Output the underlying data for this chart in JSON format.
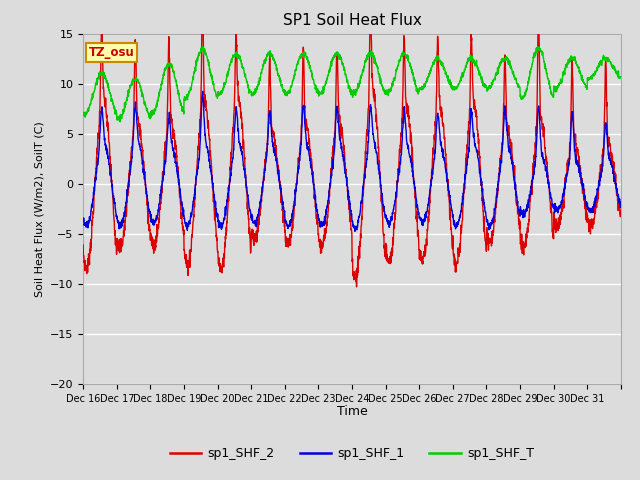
{
  "title": "SP1 Soil Heat Flux",
  "ylabel": "Soil Heat Flux (W/m2), SoilT (C)",
  "xlabel": "Time",
  "ylim": [
    -20,
    15
  ],
  "xlim": [
    0,
    16
  ],
  "background_color": "#dcdcdc",
  "plot_bg_color": "#dcdcdc",
  "grid_color": "#ffffff",
  "color_shf2": "#dd0000",
  "color_shf1": "#0000dd",
  "color_shft": "#00cc00",
  "legend_labels": [
    "sp1_SHF_2",
    "sp1_SHF_1",
    "sp1_SHF_T"
  ],
  "tz_label": "TZ_osu",
  "x_tick_labels": [
    "Dec 16",
    "Dec 17",
    "Dec 18",
    "Dec 19",
    "Dec 20",
    "Dec 21",
    "Dec 22",
    "Dec 23",
    "Dec 24",
    "Dec 25",
    "Dec 26",
    "Dec 27",
    "Dec 28",
    "Dec 29",
    "Dec 30",
    "Dec 31"
  ],
  "n_days": 16,
  "pts_per_day": 144,
  "line_width": 1.0
}
